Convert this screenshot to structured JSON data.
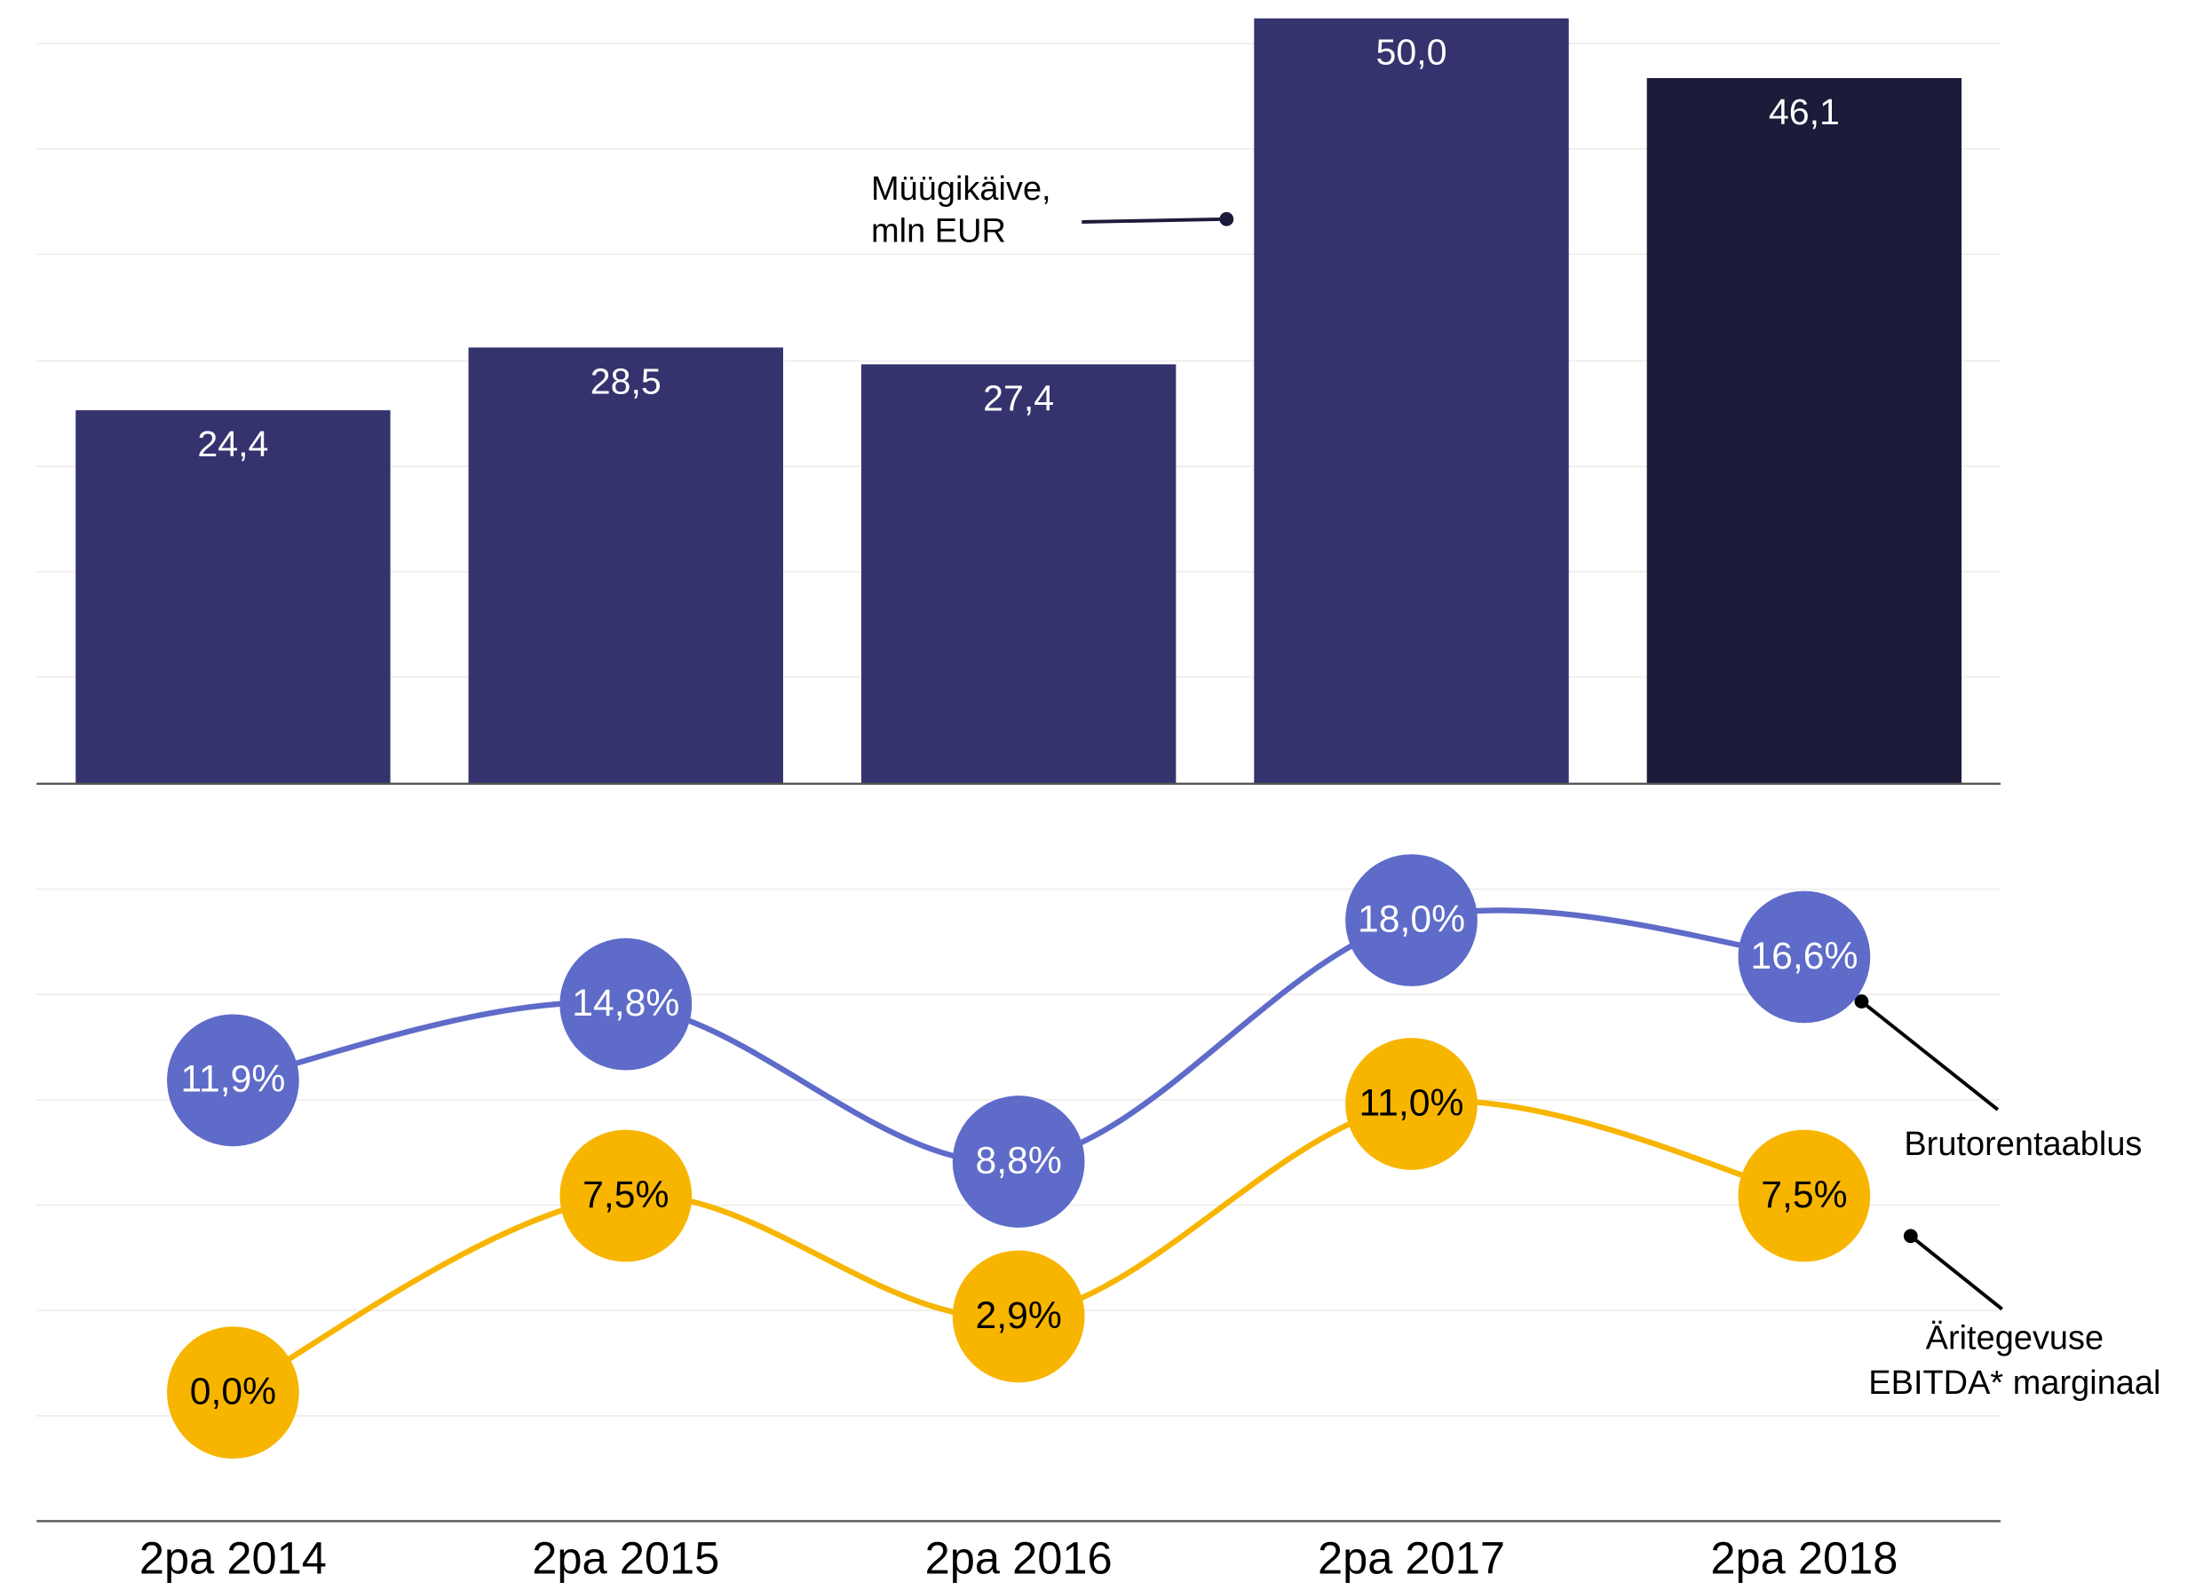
{
  "chart_data": [
    {
      "type": "bar",
      "values": [
        24.4,
        28.5,
        27.4,
        50.0,
        46.1
      ],
      "value_labels": [
        "24,4",
        "28,5",
        "27,4",
        "50,0",
        "46,1"
      ],
      "colors": [
        "#35336e",
        "#35336e",
        "#35336e",
        "#35336e",
        "#1c1b3a"
      ],
      "ylim": [
        0,
        51.2
      ],
      "label_lines": [
        "Müügikäive,",
        "mln EUR"
      ]
    },
    {
      "type": "line",
      "categories": [
        "2pa 2014",
        "2pa 2015",
        "2pa 2016",
        "2pa 2017",
        "2pa 2018"
      ],
      "ylim": [
        -4.9,
        23.2
      ],
      "series": [
        {
          "label_lines": [
            "Brutorentaablus"
          ],
          "color": "#5e6bc8",
          "text_color": "#ffffff",
          "values": [
            11.9,
            14.8,
            8.8,
            18.0,
            16.6
          ],
          "value_labels": [
            "11,9%",
            "14,8%",
            "8,8%",
            "18,0%",
            "16,6%"
          ]
        },
        {
          "label_lines": [
            "Äritegevuse",
            "EBITDA* marginaal"
          ],
          "color": "#f7b500",
          "text_color": "#000000",
          "values": [
            0.0,
            7.5,
            2.9,
            11.0,
            7.5
          ],
          "value_labels": [
            "0,0%",
            "7,5%",
            "2,9%",
            "11,0%",
            "7,5%"
          ]
        }
      ]
    }
  ]
}
